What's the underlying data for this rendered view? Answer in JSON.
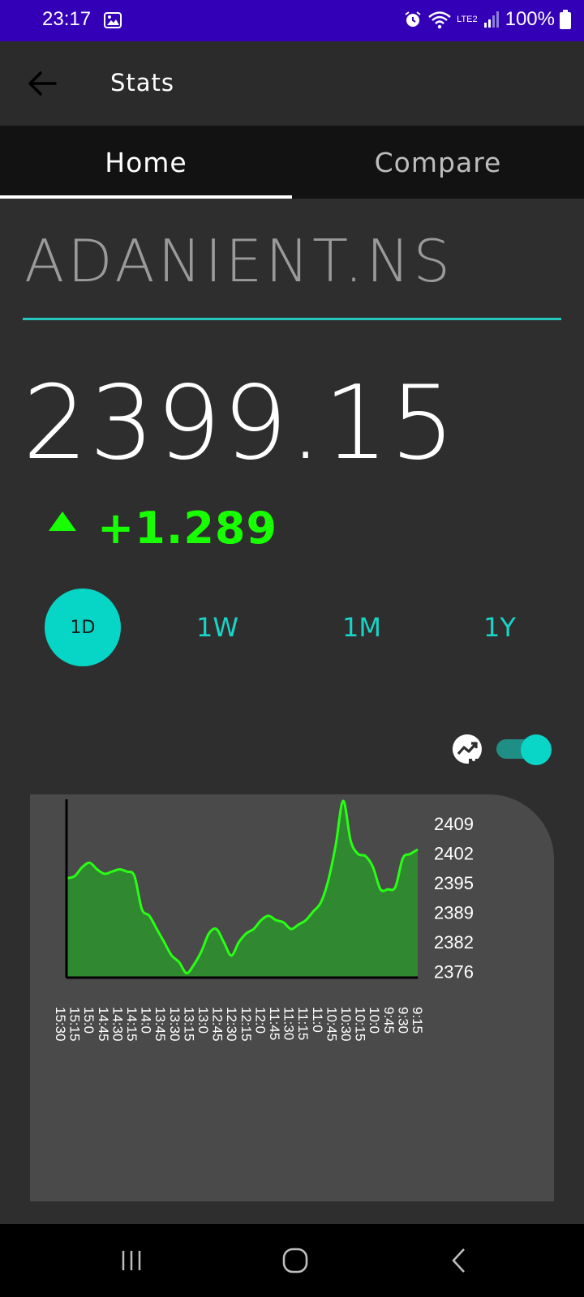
{
  "status_bar": {
    "time": "23:17",
    "battery": "100%",
    "network": "LTE2"
  },
  "app_bar": {
    "title": "Stats"
  },
  "tabs": [
    {
      "label": "Home",
      "selected": true
    },
    {
      "label": "Compare",
      "selected": false
    }
  ],
  "stock": {
    "ticker": "ADANIENT.NS",
    "price": "2399.15",
    "change": "+1.289",
    "direction": "up"
  },
  "ranges": [
    {
      "label": "1D",
      "selected": true
    },
    {
      "label": "1W",
      "selected": false
    },
    {
      "label": "1M",
      "selected": false
    },
    {
      "label": "1Y",
      "selected": false
    }
  ],
  "chart_toggle": {
    "icon": "trending-up-icon",
    "enabled": true
  },
  "colors": {
    "accent": "#07d5c5",
    "positive": "#17ff00",
    "line": "#28ff14",
    "fill": "#2e8b2e",
    "status_bar": "#3300b8"
  },
  "chart_data": {
    "type": "area",
    "x_tick_labels": [
      "15:30",
      "15:15",
      "15:0",
      "14:45",
      "14:30",
      "14:15",
      "14:0",
      "13:45",
      "13:30",
      "13:15",
      "13:0",
      "12:45",
      "12:30",
      "12:15",
      "12:0",
      "11:45",
      "11:30",
      "11:15",
      "11:0",
      "10:45",
      "10:30",
      "10:15",
      "10:0",
      "9:45",
      "9:30",
      "9:15"
    ],
    "y_tick_labels": [
      "2409",
      "2402",
      "2395",
      "2389",
      "2382",
      "2376"
    ],
    "ylim": [
      2373,
      2413
    ],
    "series": [
      {
        "values": [
          2395.5,
          2396,
          2398,
          2399,
          2397.5,
          2396.5,
          2397,
          2397.5,
          2397,
          2396,
          2388.5,
          2387,
          2384,
          2381,
          2378,
          2376.5,
          2374,
          2376,
          2379,
          2383,
          2384,
          2381,
          2378,
          2381,
          2383,
          2384,
          2386,
          2387,
          2386,
          2385.5,
          2384,
          2385,
          2386,
          2388,
          2390,
          2395,
          2403,
          2413,
          2404,
          2401,
          2400.5,
          2398,
          2393,
          2393,
          2393.5,
          2400,
          2401,
          2402
        ],
        "x_range": [
          "15:30",
          "9:15"
        ]
      }
    ],
    "grid": false,
    "legend": "none"
  }
}
